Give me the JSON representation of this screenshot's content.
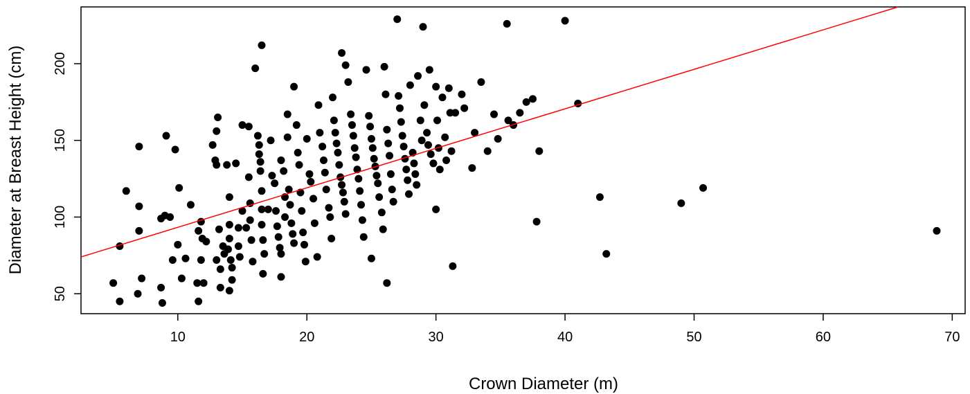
{
  "chart_data": {
    "type": "scatter",
    "xlabel": "Crown Diameter (m)",
    "ylabel": "Diameter at Breast Height (cm)",
    "xlim": [
      2.5,
      71.0
    ],
    "ylim": [
      37,
      237
    ],
    "xticks": [
      10,
      20,
      30,
      40,
      50,
      60,
      70
    ],
    "yticks": [
      50,
      100,
      150,
      200
    ],
    "grid": false,
    "point_color": "#000000",
    "line_color": "#ff0000",
    "regression_line": {
      "x": [
        2.5,
        65.8
      ],
      "y": [
        74,
        237
      ]
    },
    "points": [
      [
        5.0,
        57
      ],
      [
        5.5,
        45
      ],
      [
        5.5,
        81
      ],
      [
        6.0,
        117
      ],
      [
        7.0,
        146
      ],
      [
        7.0,
        107
      ],
      [
        7.0,
        91
      ],
      [
        7.2,
        60
      ],
      [
        6.9,
        50
      ],
      [
        8.7,
        54
      ],
      [
        8.7,
        99
      ],
      [
        8.8,
        44
      ],
      [
        9.0,
        101
      ],
      [
        9.1,
        153
      ],
      [
        9.4,
        100
      ],
      [
        9.6,
        72
      ],
      [
        9.8,
        144
      ],
      [
        10.0,
        82
      ],
      [
        10.1,
        119
      ],
      [
        10.3,
        60
      ],
      [
        10.6,
        73
      ],
      [
        11.0,
        108
      ],
      [
        11.5,
        57
      ],
      [
        11.6,
        45
      ],
      [
        11.6,
        91
      ],
      [
        11.8,
        97
      ],
      [
        11.8,
        72
      ],
      [
        11.9,
        86
      ],
      [
        12.0,
        57
      ],
      [
        12.2,
        84
      ],
      [
        12.7,
        147
      ],
      [
        12.9,
        137
      ],
      [
        13.0,
        134
      ],
      [
        13.0,
        156
      ],
      [
        13.1,
        165
      ],
      [
        13.2,
        92
      ],
      [
        13.0,
        72
      ],
      [
        13.3,
        66
      ],
      [
        13.3,
        54
      ],
      [
        13.5,
        81
      ],
      [
        13.6,
        76
      ],
      [
        13.8,
        134
      ],
      [
        13.9,
        79
      ],
      [
        14.0,
        113
      ],
      [
        14.0,
        95
      ],
      [
        14.0,
        86
      ],
      [
        14.1,
        72
      ],
      [
        14.2,
        67
      ],
      [
        14.2,
        59
      ],
      [
        14.0,
        52
      ],
      [
        14.5,
        135
      ],
      [
        14.7,
        93
      ],
      [
        14.7,
        81
      ],
      [
        14.8,
        74
      ],
      [
        15.0,
        160
      ],
      [
        15.0,
        104
      ],
      [
        15.3,
        93
      ],
      [
        15.5,
        159
      ],
      [
        15.5,
        126
      ],
      [
        15.6,
        109
      ],
      [
        15.6,
        98
      ],
      [
        15.7,
        85
      ],
      [
        15.8,
        71
      ],
      [
        16.0,
        197
      ],
      [
        16.2,
        153
      ],
      [
        16.3,
        147
      ],
      [
        16.3,
        141
      ],
      [
        16.4,
        136
      ],
      [
        16.4,
        130
      ],
      [
        16.5,
        117
      ],
      [
        16.5,
        105
      ],
      [
        16.5,
        95
      ],
      [
        16.6,
        85
      ],
      [
        16.7,
        76
      ],
      [
        16.6,
        63
      ],
      [
        16.5,
        212
      ],
      [
        17.0,
        105
      ],
      [
        17.2,
        150
      ],
      [
        17.3,
        127
      ],
      [
        17.5,
        122
      ],
      [
        17.6,
        104
      ],
      [
        17.7,
        94
      ],
      [
        17.8,
        87
      ],
      [
        17.9,
        80
      ],
      [
        18.0,
        76
      ],
      [
        18.0,
        61
      ],
      [
        18.0,
        137
      ],
      [
        18.2,
        130
      ],
      [
        18.3,
        113
      ],
      [
        18.3,
        100
      ],
      [
        18.5,
        167
      ],
      [
        18.5,
        152
      ],
      [
        18.6,
        118
      ],
      [
        18.7,
        108
      ],
      [
        18.8,
        96
      ],
      [
        18.9,
        89
      ],
      [
        19.0,
        83
      ],
      [
        19.0,
        185
      ],
      [
        19.2,
        160
      ],
      [
        19.3,
        142
      ],
      [
        19.4,
        134
      ],
      [
        19.5,
        116
      ],
      [
        19.6,
        104
      ],
      [
        19.7,
        90
      ],
      [
        19.8,
        82
      ],
      [
        19.9,
        71
      ],
      [
        20.0,
        151
      ],
      [
        20.2,
        128
      ],
      [
        20.3,
        123
      ],
      [
        20.5,
        112
      ],
      [
        20.6,
        96
      ],
      [
        20.8,
        74
      ],
      [
        20.9,
        173
      ],
      [
        21.0,
        155
      ],
      [
        21.2,
        146
      ],
      [
        21.3,
        137
      ],
      [
        21.4,
        129
      ],
      [
        21.5,
        118
      ],
      [
        21.7,
        106
      ],
      [
        21.8,
        100
      ],
      [
        21.9,
        86
      ],
      [
        22.0,
        178
      ],
      [
        22.1,
        163
      ],
      [
        22.2,
        155
      ],
      [
        22.3,
        148
      ],
      [
        22.4,
        142
      ],
      [
        22.5,
        134
      ],
      [
        22.6,
        126
      ],
      [
        22.7,
        121
      ],
      [
        22.8,
        116
      ],
      [
        22.9,
        110
      ],
      [
        23.0,
        102
      ],
      [
        22.7,
        207
      ],
      [
        23.0,
        199
      ],
      [
        23.2,
        188
      ],
      [
        23.4,
        167
      ],
      [
        23.5,
        160
      ],
      [
        23.6,
        153
      ],
      [
        23.7,
        145
      ],
      [
        23.8,
        139
      ],
      [
        23.9,
        131
      ],
      [
        24.0,
        125
      ],
      [
        24.1,
        117
      ],
      [
        24.2,
        108
      ],
      [
        24.3,
        98
      ],
      [
        24.4,
        87
      ],
      [
        24.6,
        196
      ],
      [
        24.8,
        166
      ],
      [
        24.9,
        159
      ],
      [
        25.0,
        151
      ],
      [
        25.1,
        145
      ],
      [
        25.2,
        138
      ],
      [
        25.3,
        133
      ],
      [
        25.4,
        127
      ],
      [
        25.5,
        122
      ],
      [
        25.6,
        113
      ],
      [
        25.8,
        103
      ],
      [
        25.9,
        92
      ],
      [
        25.0,
        73
      ],
      [
        26.0,
        198
      ],
      [
        26.1,
        180
      ],
      [
        26.2,
        157
      ],
      [
        26.3,
        148
      ],
      [
        26.4,
        140
      ],
      [
        26.5,
        128
      ],
      [
        26.6,
        118
      ],
      [
        26.7,
        110
      ],
      [
        26.2,
        57
      ],
      [
        27.0,
        229
      ],
      [
        27.1,
        179
      ],
      [
        27.2,
        171
      ],
      [
        27.3,
        162
      ],
      [
        27.4,
        153
      ],
      [
        27.5,
        146
      ],
      [
        27.6,
        138
      ],
      [
        27.7,
        131
      ],
      [
        27.8,
        124
      ],
      [
        27.9,
        115
      ],
      [
        28.0,
        186
      ],
      [
        28.2,
        142
      ],
      [
        28.3,
        135
      ],
      [
        28.4,
        128
      ],
      [
        28.5,
        121
      ],
      [
        28.6,
        192
      ],
      [
        28.8,
        163
      ],
      [
        28.9,
        150
      ],
      [
        29.0,
        224
      ],
      [
        29.1,
        173
      ],
      [
        29.3,
        155
      ],
      [
        29.4,
        147
      ],
      [
        29.5,
        196
      ],
      [
        29.6,
        141
      ],
      [
        29.8,
        135
      ],
      [
        30.0,
        185
      ],
      [
        30.1,
        163
      ],
      [
        30.2,
        145
      ],
      [
        30.3,
        131
      ],
      [
        30.0,
        105
      ],
      [
        30.5,
        178
      ],
      [
        30.7,
        152
      ],
      [
        30.8,
        137
      ],
      [
        31.0,
        184
      ],
      [
        31.1,
        168
      ],
      [
        31.2,
        143
      ],
      [
        31.3,
        68
      ],
      [
        31.5,
        168
      ],
      [
        32.0,
        180
      ],
      [
        32.2,
        171
      ],
      [
        32.8,
        132
      ],
      [
        33.0,
        155
      ],
      [
        33.5,
        188
      ],
      [
        34.0,
        143
      ],
      [
        34.5,
        167
      ],
      [
        34.8,
        151
      ],
      [
        35.5,
        226
      ],
      [
        35.6,
        163
      ],
      [
        36.0,
        160
      ],
      [
        36.5,
        168
      ],
      [
        37.0,
        175
      ],
      [
        37.5,
        177
      ],
      [
        37.8,
        97
      ],
      [
        38.0,
        143
      ],
      [
        40.0,
        228
      ],
      [
        41.0,
        174
      ],
      [
        42.7,
        113
      ],
      [
        43.2,
        76
      ],
      [
        49.0,
        109
      ],
      [
        50.7,
        119
      ],
      [
        68.8,
        91
      ]
    ]
  }
}
